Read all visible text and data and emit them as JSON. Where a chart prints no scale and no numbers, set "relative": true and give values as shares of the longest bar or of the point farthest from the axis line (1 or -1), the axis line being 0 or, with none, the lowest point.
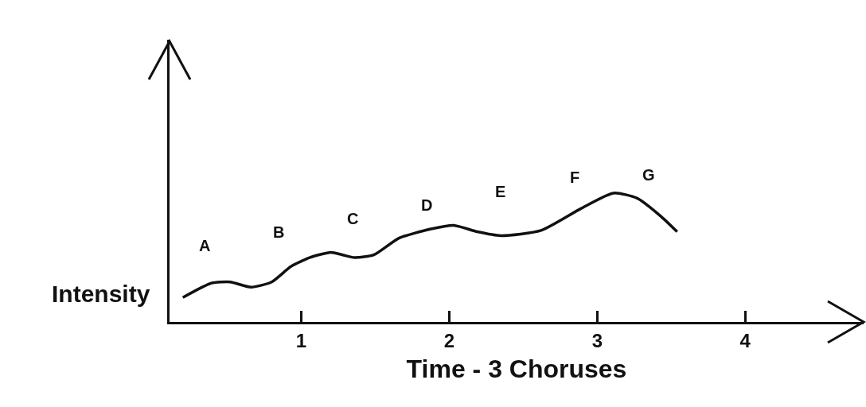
{
  "chart_data": {
    "type": "line",
    "relative": true,
    "xlabel": "Time - 3 Choruses",
    "ylabel": "Intensity",
    "x": [
      0.2,
      0.39,
      0.52,
      0.66,
      0.8,
      0.93,
      1.06,
      1.2,
      1.28,
      1.36,
      1.49,
      1.66,
      1.87,
      2.03,
      2.19,
      2.35,
      2.62,
      2.89,
      3.11,
      3.27,
      3.43,
      3.54
    ],
    "series": [
      {
        "color": "#111111",
        "values": [
          0.19,
          0.3,
          0.31,
          0.27,
          0.31,
          0.43,
          0.5,
          0.54,
          0.52,
          0.5,
          0.52,
          0.65,
          0.72,
          0.75,
          0.7,
          0.67,
          0.71,
          0.88,
          1.0,
          0.96,
          0.82,
          0.7
        ]
      }
    ],
    "xlim": [
      0.11,
      4.8
    ],
    "xticks": [
      1,
      2,
      3,
      4
    ],
    "annotations": [
      "A",
      "B",
      "C",
      "D",
      "E",
      "F",
      "G"
    ],
    "tick_labels": "x",
    "grid": false,
    "marker": "none",
    "line_style": "solid"
  }
}
